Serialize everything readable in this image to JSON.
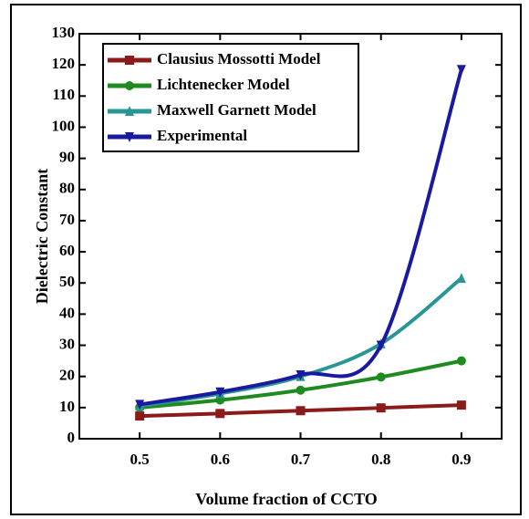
{
  "chart_data": {
    "type": "line",
    "x_label": "Volume fraction of CCTO",
    "y_label": "Dielectric Constant",
    "x": [
      0.5,
      0.6,
      0.7,
      0.8,
      0.9
    ],
    "series": [
      {
        "name": "Clausius Mossotti Model",
        "color": "#8b1a1a",
        "marker": "square",
        "values": [
          7.3,
          8.1,
          9,
          9.9,
          10.8
        ]
      },
      {
        "name": "Lichtenecker Model",
        "color": "#1f8a1f",
        "marker": "circle",
        "values": [
          10,
          12.4,
          15.6,
          19.8,
          25
        ]
      },
      {
        "name": "Maxwell Garnett Model",
        "color": "#2a9595",
        "marker": "triangle-up",
        "values": [
          10.5,
          14.5,
          20,
          30.5,
          51.5
        ]
      },
      {
        "name": "Experimental",
        "color": "#1a1aa0",
        "marker": "triangle-down",
        "values": [
          11,
          15,
          20.5,
          30,
          118.5
        ]
      }
    ],
    "xlim": [
      0.425,
      0.95
    ],
    "xticks": [
      0.5,
      0.6,
      0.7,
      0.8,
      0.9
    ],
    "ylim": [
      0,
      130
    ],
    "yticks": [
      0,
      10,
      20,
      30,
      40,
      50,
      60,
      70,
      80,
      90,
      100,
      110,
      120,
      130
    ],
    "legend": "upper left"
  }
}
